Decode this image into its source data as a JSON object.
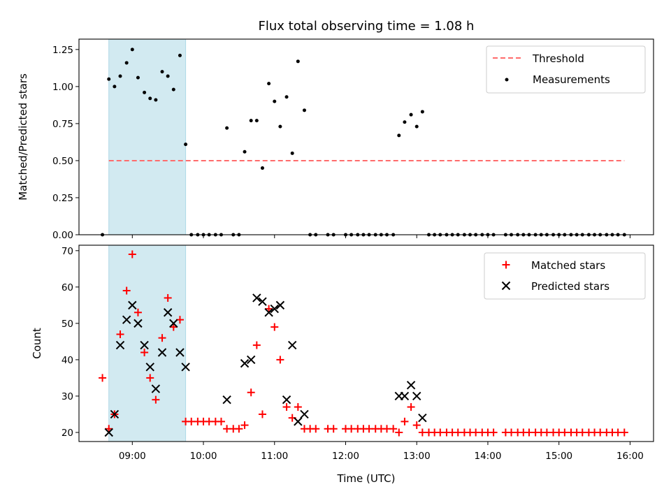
{
  "title": "Flux total observing time = 1.08 h",
  "colors": {
    "threshold": "#ff6b6b",
    "measurement": "#000000",
    "matched": "#ff0000",
    "predicted": "#000000",
    "shade": "#add8e6"
  },
  "chart_data": [
    {
      "type": "scatter",
      "panel": "top",
      "ylabel": "Matched/Predicted stars",
      "xlabel": "",
      "xlim": [
        8.25,
        16.33
      ],
      "ylim": [
        0,
        1.32
      ],
      "yticks": [
        0,
        0.25,
        0.5,
        0.75,
        1.0,
        1.25
      ],
      "ytick_labels": [
        "0.00",
        "0.25",
        "0.50",
        "0.75",
        "1.00",
        "1.25"
      ],
      "shaded_span": [
        8.67,
        9.75
      ],
      "legend_position": "upper right",
      "legend": [
        "Threshold",
        "Measurements"
      ],
      "threshold": {
        "name": "Threshold",
        "y": 0.5,
        "x": [
          8.67,
          15.92
        ],
        "style": "dashed"
      },
      "series": [
        {
          "name": "Measurements",
          "x": [
            8.58,
            8.67,
            8.75,
            8.83,
            8.92,
            9.0,
            9.08,
            9.17,
            9.25,
            9.33,
            9.42,
            9.5,
            9.58,
            9.67,
            9.75,
            9.83,
            9.92,
            10.0,
            10.08,
            10.17,
            10.25,
            10.33,
            10.42,
            10.5,
            10.58,
            10.67,
            10.75,
            10.83,
            10.92,
            11.0,
            11.08,
            11.17,
            11.25,
            11.33,
            11.42,
            11.5,
            11.58,
            11.75,
            11.83,
            12.0,
            12.08,
            12.17,
            12.25,
            12.33,
            12.42,
            12.5,
            12.58,
            12.67,
            12.75,
            12.83,
            12.92,
            13.0,
            13.08,
            13.17,
            13.25,
            13.33,
            13.42,
            13.5,
            13.58,
            13.67,
            13.75,
            13.83,
            13.92,
            14.0,
            14.08,
            14.25,
            14.33,
            14.42,
            14.5,
            14.58,
            14.67,
            14.75,
            14.83,
            14.92,
            15.0,
            15.08,
            15.17,
            15.25,
            15.33,
            15.42,
            15.5,
            15.58,
            15.67,
            15.75,
            15.83,
            15.92
          ],
          "y": [
            0.0,
            1.05,
            1.0,
            1.07,
            1.16,
            1.25,
            1.06,
            0.96,
            0.92,
            0.91,
            1.1,
            1.07,
            0.98,
            1.21,
            0.61,
            0.0,
            0.0,
            0.0,
            0.0,
            0.0,
            0.0,
            0.72,
            0.0,
            0.0,
            0.56,
            0.77,
            0.77,
            0.45,
            1.02,
            0.9,
            0.73,
            0.93,
            0.55,
            1.17,
            0.84,
            0.0,
            0.0,
            0.0,
            0.0,
            0.0,
            0.0,
            0.0,
            0.0,
            0.0,
            0.0,
            0.0,
            0.0,
            0.0,
            0.67,
            0.76,
            0.81,
            0.73,
            0.83,
            0.0,
            0.0,
            0.0,
            0.0,
            0.0,
            0.0,
            0.0,
            0.0,
            0.0,
            0.0,
            0.0,
            0.0,
            0.0,
            0.0,
            0.0,
            0.0,
            0.0,
            0.0,
            0.0,
            0.0,
            0.0,
            0.0,
            0.0,
            0.0,
            0.0,
            0.0,
            0.0,
            0.0,
            0.0,
            0.0,
            0.0,
            0.0,
            0.0
          ]
        }
      ]
    },
    {
      "type": "scatter",
      "panel": "bottom",
      "ylabel": "Count",
      "xlabel": "Time (UTC)",
      "xlim": [
        8.25,
        16.33
      ],
      "ylim": [
        17.5,
        71.5
      ],
      "yticks": [
        20,
        30,
        40,
        50,
        60,
        70
      ],
      "ytick_labels": [
        "20",
        "30",
        "40",
        "50",
        "60",
        "70"
      ],
      "xticks": [
        9,
        10,
        11,
        12,
        13,
        14,
        15,
        16
      ],
      "xtick_labels": [
        "09:00",
        "10:00",
        "11:00",
        "12:00",
        "13:00",
        "14:00",
        "15:00",
        "16:00"
      ],
      "shaded_span": [
        8.67,
        9.75
      ],
      "legend_position": "upper right",
      "legend": [
        "Matched stars",
        "Predicted stars"
      ],
      "series": [
        {
          "name": "Matched stars",
          "marker": "plus",
          "x": [
            8.58,
            8.67,
            8.75,
            8.83,
            8.92,
            9.0,
            9.08,
            9.17,
            9.25,
            9.33,
            9.42,
            9.5,
            9.58,
            9.67,
            9.75,
            9.83,
            9.92,
            10.0,
            10.08,
            10.17,
            10.25,
            10.33,
            10.42,
            10.5,
            10.58,
            10.67,
            10.75,
            10.83,
            10.92,
            11.0,
            11.08,
            11.17,
            11.25,
            11.33,
            11.42,
            11.5,
            11.58,
            11.75,
            11.83,
            12.0,
            12.08,
            12.17,
            12.25,
            12.33,
            12.42,
            12.5,
            12.58,
            12.67,
            12.75,
            12.83,
            12.92,
            13.0,
            13.08,
            13.17,
            13.25,
            13.33,
            13.42,
            13.5,
            13.58,
            13.67,
            13.75,
            13.83,
            13.92,
            14.0,
            14.08,
            14.25,
            14.33,
            14.42,
            14.5,
            14.58,
            14.67,
            14.75,
            14.83,
            14.92,
            15.0,
            15.08,
            15.17,
            15.25,
            15.33,
            15.42,
            15.5,
            15.58,
            15.67,
            15.75,
            15.83,
            15.92
          ],
          "y": [
            35,
            21,
            25,
            47,
            59,
            69,
            53,
            42,
            35,
            29,
            46,
            57,
            49,
            51,
            23,
            23,
            23,
            23,
            23,
            23,
            23,
            21,
            21,
            21,
            22,
            31,
            44,
            25,
            54,
            49,
            40,
            27,
            24,
            27,
            21,
            21,
            21,
            21,
            21,
            21,
            21,
            21,
            21,
            21,
            21,
            21,
            21,
            21,
            20,
            23,
            27,
            22,
            20,
            20,
            20,
            20,
            20,
            20,
            20,
            20,
            20,
            20,
            20,
            20,
            20,
            20,
            20,
            20,
            20,
            20,
            20,
            20,
            20,
            20,
            20,
            20,
            20,
            20,
            20,
            20,
            20,
            20,
            20,
            20,
            20,
            20
          ]
        },
        {
          "name": "Predicted stars",
          "marker": "x",
          "x": [
            8.67,
            8.75,
            8.83,
            8.92,
            9.0,
            9.08,
            9.17,
            9.25,
            9.33,
            9.42,
            9.5,
            9.58,
            9.67,
            9.75,
            10.33,
            10.58,
            10.67,
            10.75,
            10.83,
            10.92,
            11.0,
            11.08,
            11.17,
            11.25,
            11.33,
            11.42,
            12.75,
            12.83,
            12.92,
            13.0,
            13.08
          ],
          "y": [
            20,
            25,
            44,
            51,
            55,
            50,
            44,
            38,
            32,
            42,
            53,
            50,
            42,
            38,
            29,
            39,
            40,
            57,
            56,
            53,
            54,
            55,
            29,
            44,
            23,
            25,
            30,
            30,
            33,
            30,
            24
          ]
        }
      ]
    }
  ]
}
